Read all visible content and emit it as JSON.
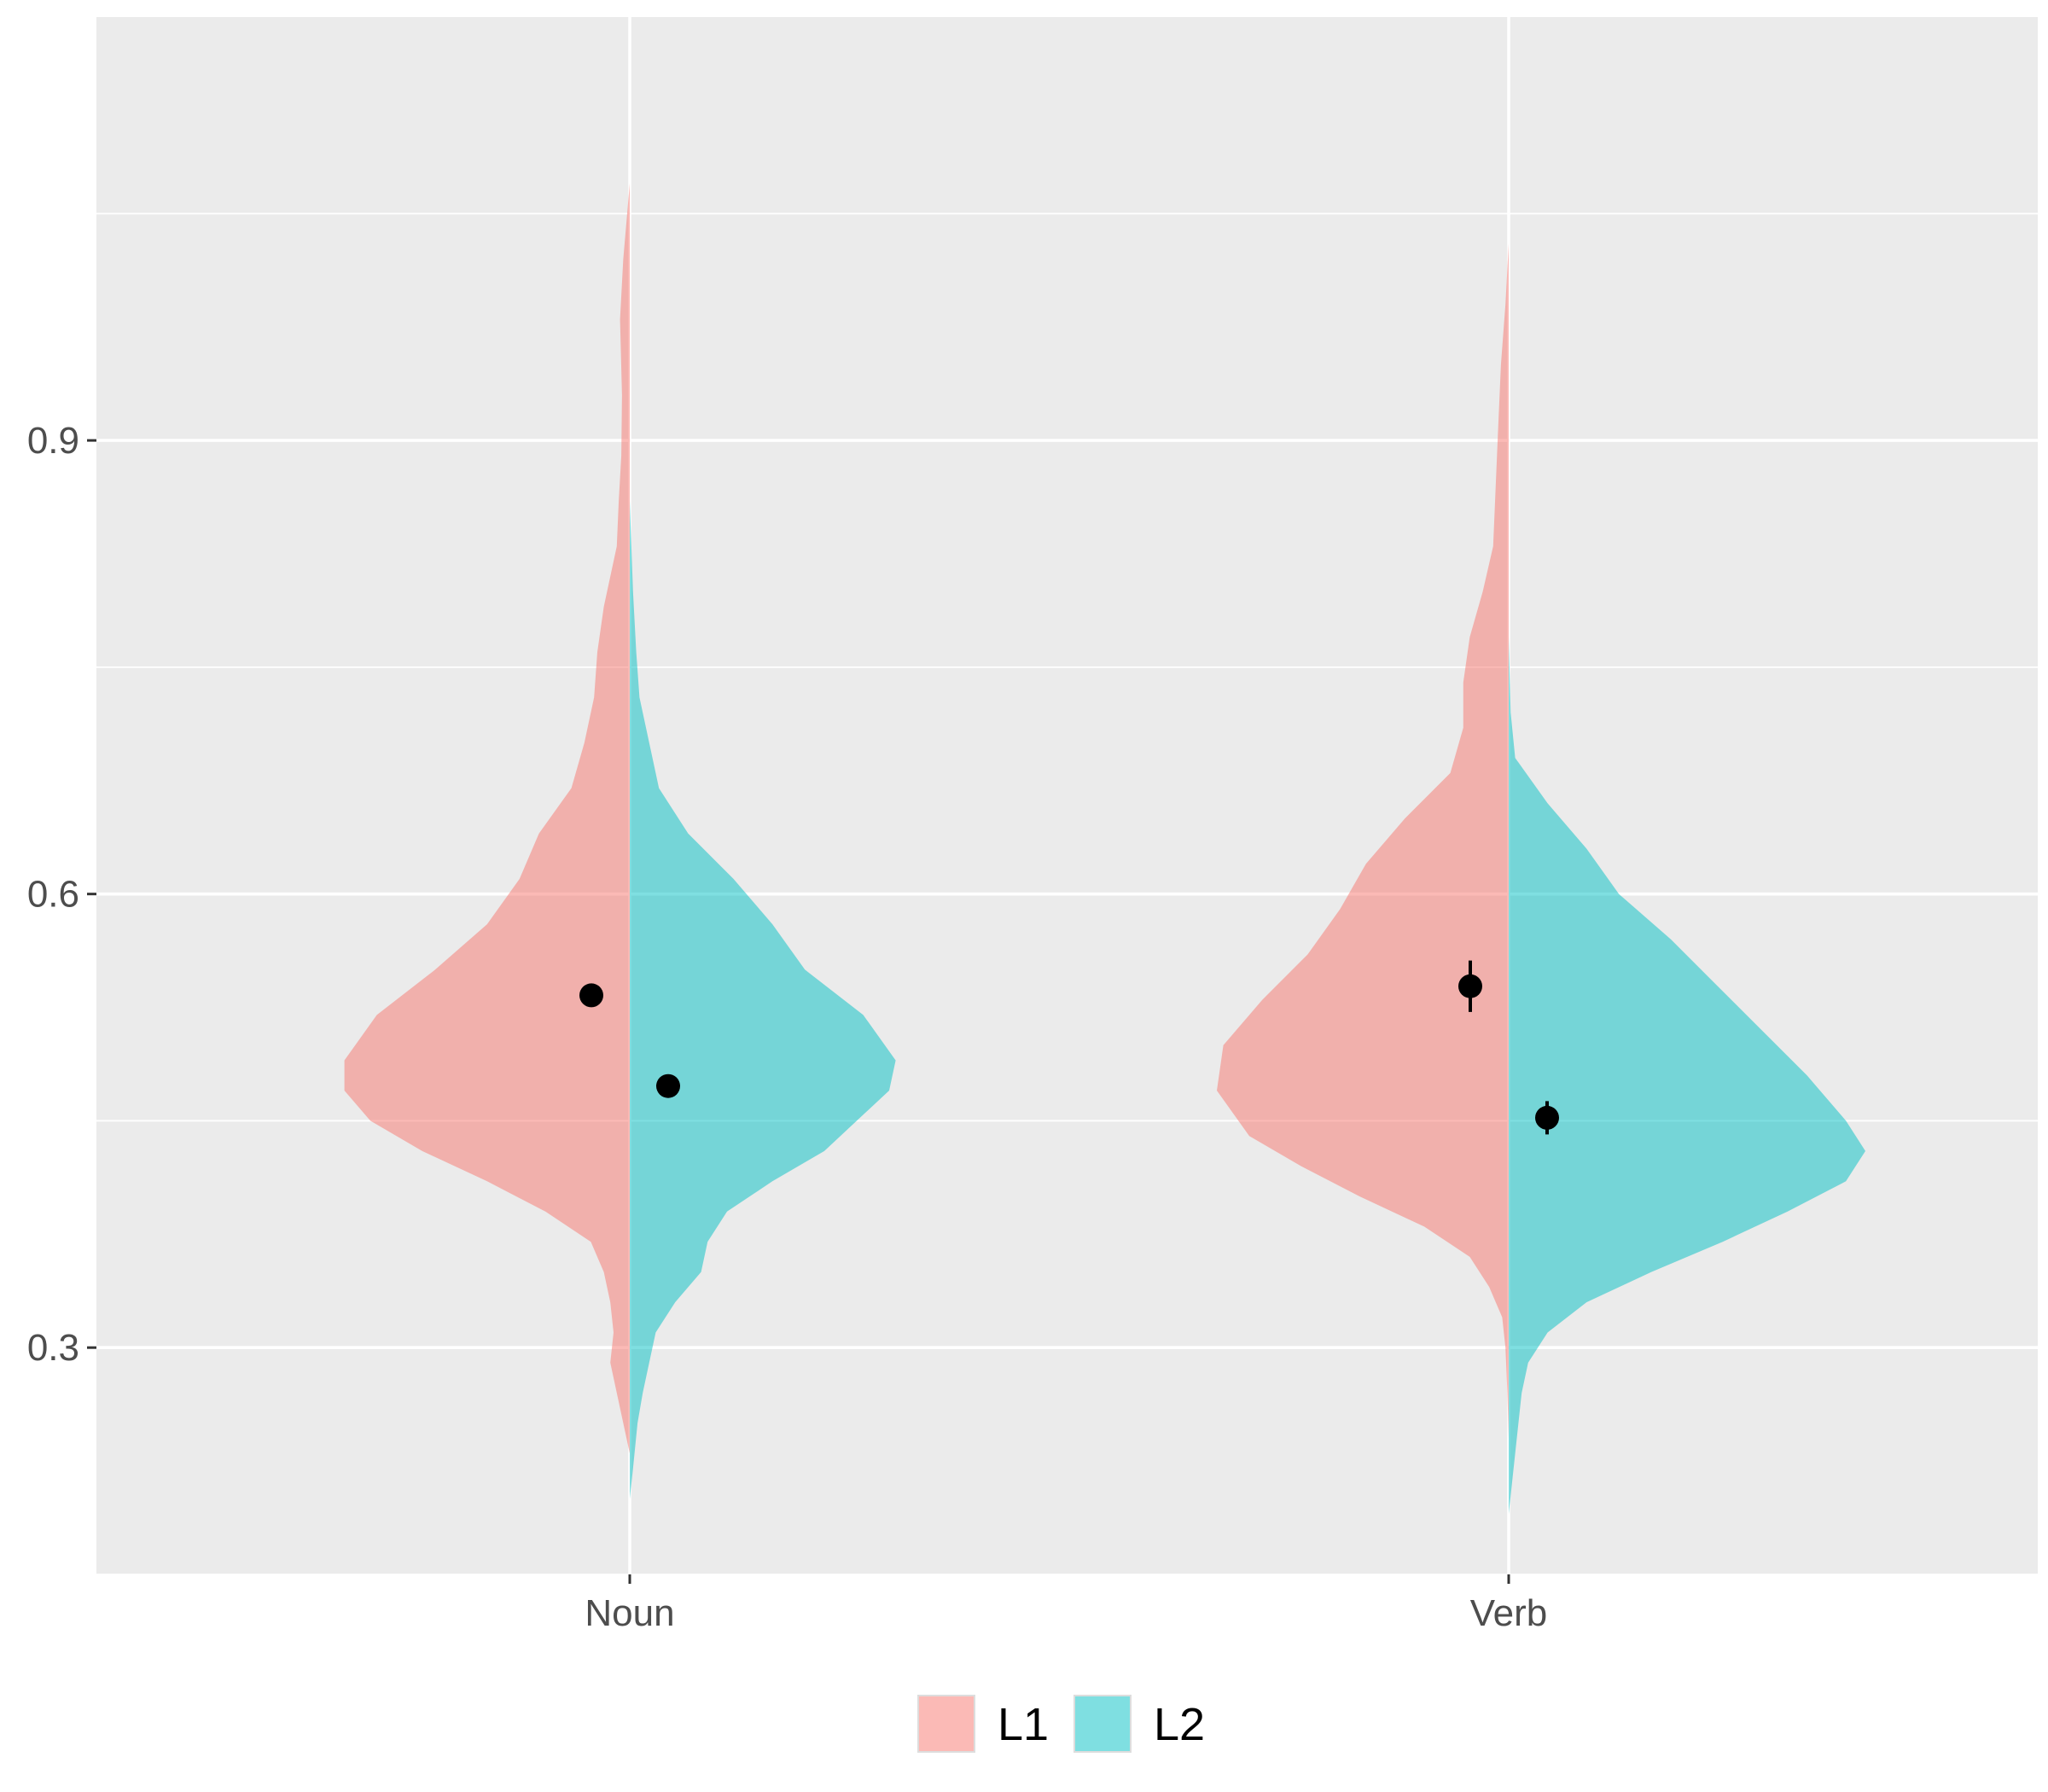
{
  "chart_data": {
    "type": "split-violin",
    "categories": [
      "Noun",
      "Verb"
    ],
    "ylim": [
      0.15,
      1.18
    ],
    "y_ticks": [
      0.3,
      0.6,
      0.9
    ],
    "y_tick_labels": [
      "0.3",
      "0.6",
      "0.9"
    ],
    "grid": true,
    "legend_position": "bottom",
    "xlabel": "",
    "ylabel": "",
    "title": "",
    "series": [
      {
        "name": "L1",
        "color": "#F8766D",
        "side": "left",
        "violins": [
          {
            "category": "Noun",
            "mean": 0.533,
            "se": 0.004,
            "density": [
              [
                1.07,
                0.0
              ],
              [
                1.02,
                0.01
              ],
              [
                0.98,
                0.015
              ],
              [
                0.93,
                0.012
              ],
              [
                0.89,
                0.013
              ],
              [
                0.86,
                0.017
              ],
              [
                0.83,
                0.02
              ],
              [
                0.79,
                0.04
              ],
              [
                0.76,
                0.05
              ],
              [
                0.73,
                0.055
              ],
              [
                0.7,
                0.07
              ],
              [
                0.67,
                0.09
              ],
              [
                0.64,
                0.14
              ],
              [
                0.61,
                0.17
              ],
              [
                0.58,
                0.22
              ],
              [
                0.55,
                0.3
              ],
              [
                0.52,
                0.39
              ],
              [
                0.49,
                0.44
              ],
              [
                0.47,
                0.44
              ],
              [
                0.45,
                0.4
              ],
              [
                0.43,
                0.32
              ],
              [
                0.41,
                0.22
              ],
              [
                0.39,
                0.13
              ],
              [
                0.37,
                0.06
              ],
              [
                0.35,
                0.04
              ],
              [
                0.33,
                0.03
              ],
              [
                0.31,
                0.025
              ],
              [
                0.29,
                0.03
              ],
              [
                0.27,
                0.02
              ],
              [
                0.24,
                0.005
              ],
              [
                0.23,
                0.0
              ]
            ]
          },
          {
            "category": "Verb",
            "mean": 0.539,
            "se": 0.017,
            "density": [
              [
                1.03,
                0.0
              ],
              [
                0.99,
                0.005
              ],
              [
                0.95,
                0.012
              ],
              [
                0.91,
                0.016
              ],
              [
                0.87,
                0.02
              ],
              [
                0.83,
                0.024
              ],
              [
                0.8,
                0.04
              ],
              [
                0.77,
                0.06
              ],
              [
                0.74,
                0.07
              ],
              [
                0.71,
                0.07
              ],
              [
                0.68,
                0.09
              ],
              [
                0.65,
                0.16
              ],
              [
                0.62,
                0.22
              ],
              [
                0.59,
                0.26
              ],
              [
                0.56,
                0.31
              ],
              [
                0.53,
                0.38
              ],
              [
                0.5,
                0.44
              ],
              [
                0.47,
                0.45
              ],
              [
                0.44,
                0.4
              ],
              [
                0.42,
                0.32
              ],
              [
                0.4,
                0.23
              ],
              [
                0.38,
                0.13
              ],
              [
                0.36,
                0.06
              ],
              [
                0.34,
                0.03
              ],
              [
                0.32,
                0.01
              ],
              [
                0.3,
                0.005
              ],
              [
                0.27,
                0.002
              ],
              [
                0.24,
                0.0
              ]
            ]
          }
        ]
      },
      {
        "name": "L2",
        "color": "#00BFC4",
        "side": "right",
        "violins": [
          {
            "category": "Noun",
            "mean": 0.473,
            "se": 0.004,
            "density": [
              [
                0.86,
                0.0
              ],
              [
                0.8,
                0.005
              ],
              [
                0.76,
                0.01
              ],
              [
                0.73,
                0.015
              ],
              [
                0.7,
                0.03
              ],
              [
                0.67,
                0.045
              ],
              [
                0.64,
                0.09
              ],
              [
                0.61,
                0.16
              ],
              [
                0.58,
                0.22
              ],
              [
                0.55,
                0.27
              ],
              [
                0.52,
                0.36
              ],
              [
                0.49,
                0.41
              ],
              [
                0.47,
                0.4
              ],
              [
                0.45,
                0.35
              ],
              [
                0.43,
                0.3
              ],
              [
                0.41,
                0.22
              ],
              [
                0.39,
                0.15
              ],
              [
                0.37,
                0.12
              ],
              [
                0.35,
                0.11
              ],
              [
                0.33,
                0.07
              ],
              [
                0.31,
                0.04
              ],
              [
                0.29,
                0.03
              ],
              [
                0.27,
                0.02
              ],
              [
                0.25,
                0.012
              ],
              [
                0.22,
                0.005
              ],
              [
                0.2,
                0.0
              ]
            ]
          },
          {
            "category": "Verb",
            "mean": 0.452,
            "se": 0.011,
            "density": [
              [
                0.77,
                0.0
              ],
              [
                0.72,
                0.003
              ],
              [
                0.69,
                0.01
              ],
              [
                0.66,
                0.06
              ],
              [
                0.63,
                0.12
              ],
              [
                0.6,
                0.17
              ],
              [
                0.57,
                0.25
              ],
              [
                0.54,
                0.32
              ],
              [
                0.51,
                0.39
              ],
              [
                0.48,
                0.46
              ],
              [
                0.45,
                0.52
              ],
              [
                0.43,
                0.55
              ],
              [
                0.41,
                0.52
              ],
              [
                0.39,
                0.43
              ],
              [
                0.37,
                0.33
              ],
              [
                0.35,
                0.22
              ],
              [
                0.33,
                0.12
              ],
              [
                0.31,
                0.06
              ],
              [
                0.29,
                0.03
              ],
              [
                0.27,
                0.02
              ],
              [
                0.25,
                0.015
              ],
              [
                0.23,
                0.01
              ],
              [
                0.21,
                0.005
              ],
              [
                0.19,
                0.0
              ]
            ]
          }
        ]
      }
    ]
  }
}
